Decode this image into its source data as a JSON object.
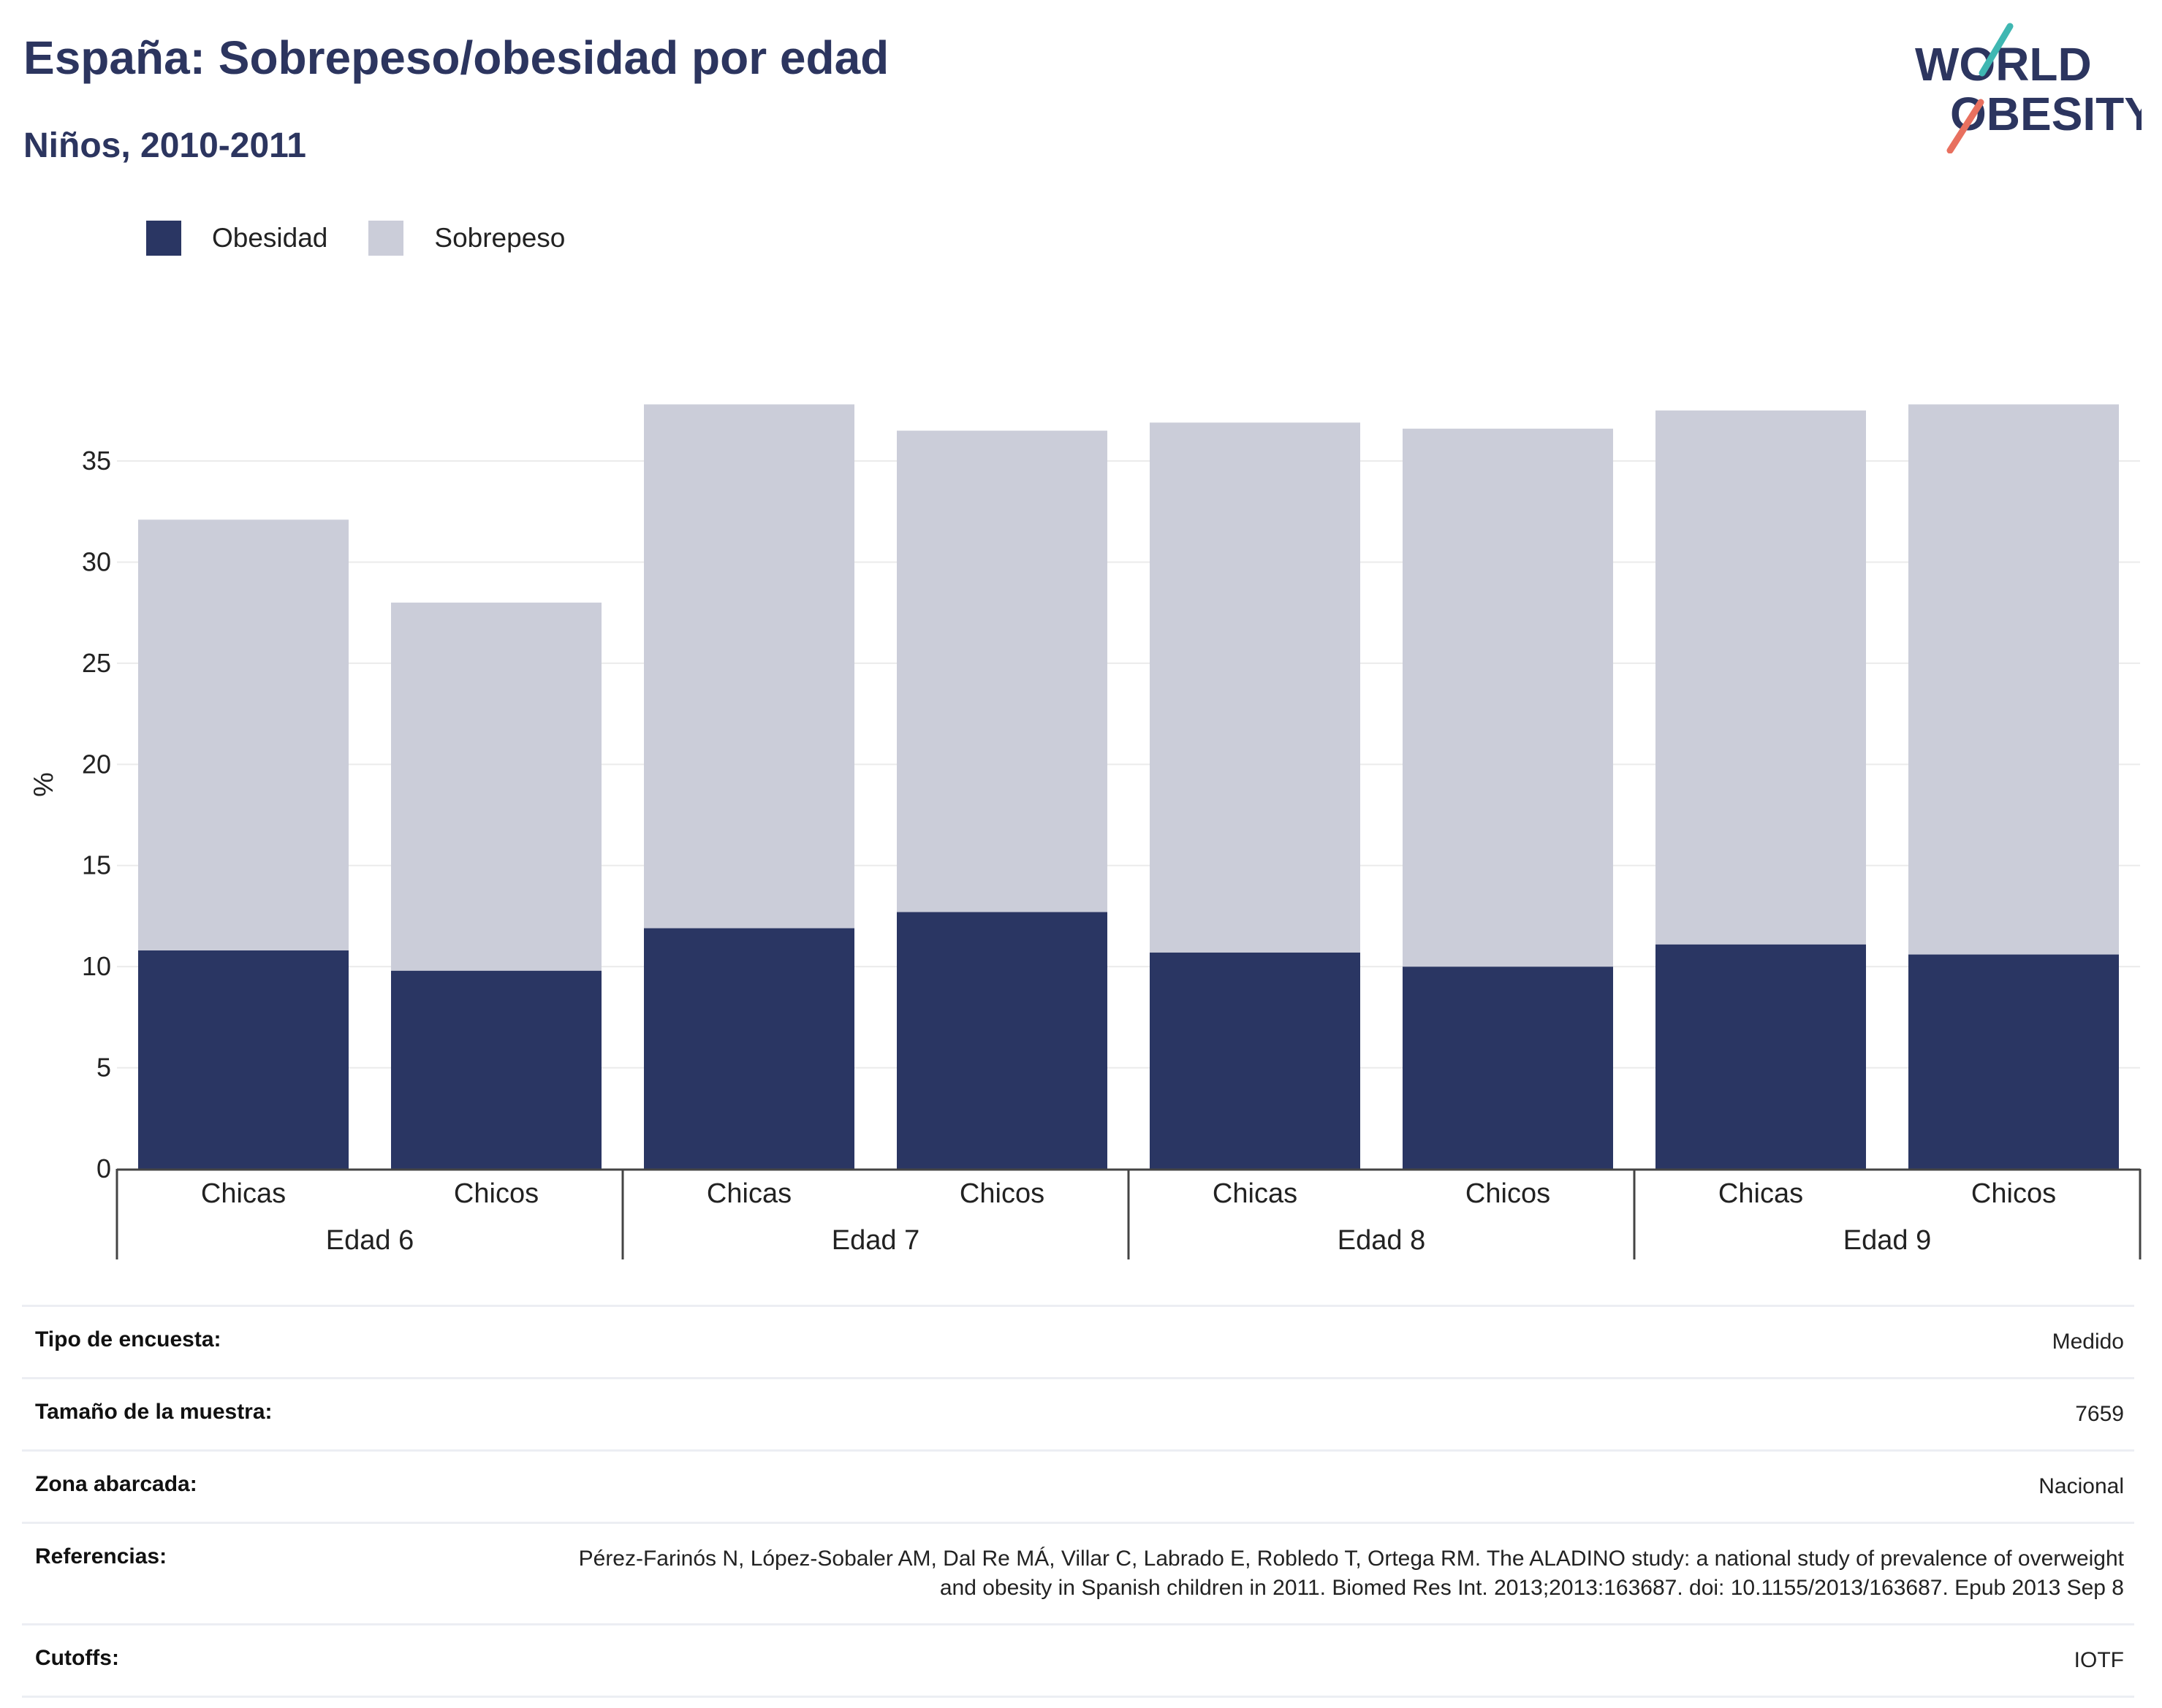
{
  "header": {
    "title": "España: Sobrepeso/obesidad por edad",
    "subtitle": "Niños, 2010-2011"
  },
  "logo": {
    "line1": "WORLD",
    "line2": "OBESITY",
    "accent_colors": [
      "#3fb7b2",
      "#e8705f"
    ]
  },
  "legend": [
    {
      "label": "Obesidad",
      "color": "#2a3663"
    },
    {
      "label": "Sobrepeso",
      "color": "#cbcdd9"
    }
  ],
  "chart_data": {
    "type": "bar",
    "stacked": true,
    "ylabel": "%",
    "ylim": [
      0,
      38
    ],
    "yticks": [
      0,
      5,
      10,
      15,
      20,
      25,
      30,
      35
    ],
    "grid": true,
    "legend_position": "top-left",
    "groups": [
      "Edad 6",
      "Edad 7",
      "Edad 8",
      "Edad 9"
    ],
    "categories": [
      "Chicas",
      "Chicos",
      "Chicas",
      "Chicos",
      "Chicas",
      "Chicos",
      "Chicas",
      "Chicos"
    ],
    "category_groups": [
      "Edad 6",
      "Edad 6",
      "Edad 7",
      "Edad 7",
      "Edad 8",
      "Edad 8",
      "Edad 9",
      "Edad 9"
    ],
    "series": [
      {
        "name": "Obesidad",
        "color": "#2a3663",
        "values": [
          10.8,
          9.8,
          11.9,
          12.7,
          10.7,
          10.0,
          11.1,
          10.6
        ]
      },
      {
        "name": "Sobrepeso",
        "color": "#cbcdd9",
        "values": [
          21.3,
          18.2,
          25.9,
          23.8,
          26.2,
          26.6,
          26.4,
          27.2
        ]
      }
    ]
  },
  "info": [
    {
      "label": "Tipo de encuesta:",
      "value": "Medido"
    },
    {
      "label": "Tamaño de la muestra:",
      "value": "7659"
    },
    {
      "label": "Zona abarcada:",
      "value": "Nacional"
    },
    {
      "label": "Referencias:",
      "value": "Pérez-Farinós N, López-Sobaler AM, Dal Re MÁ, Villar C, Labrado E, Robledo T, Ortega RM. The ALADINO study: a national study of prevalence of overweight and obesity in Spanish children in 2011. Biomed Res Int. 2013;2013:163687. doi: 10.1155/2013/163687. Epub 2013 Sep 8"
    },
    {
      "label": "Cutoffs:",
      "value": "IOTF"
    }
  ]
}
